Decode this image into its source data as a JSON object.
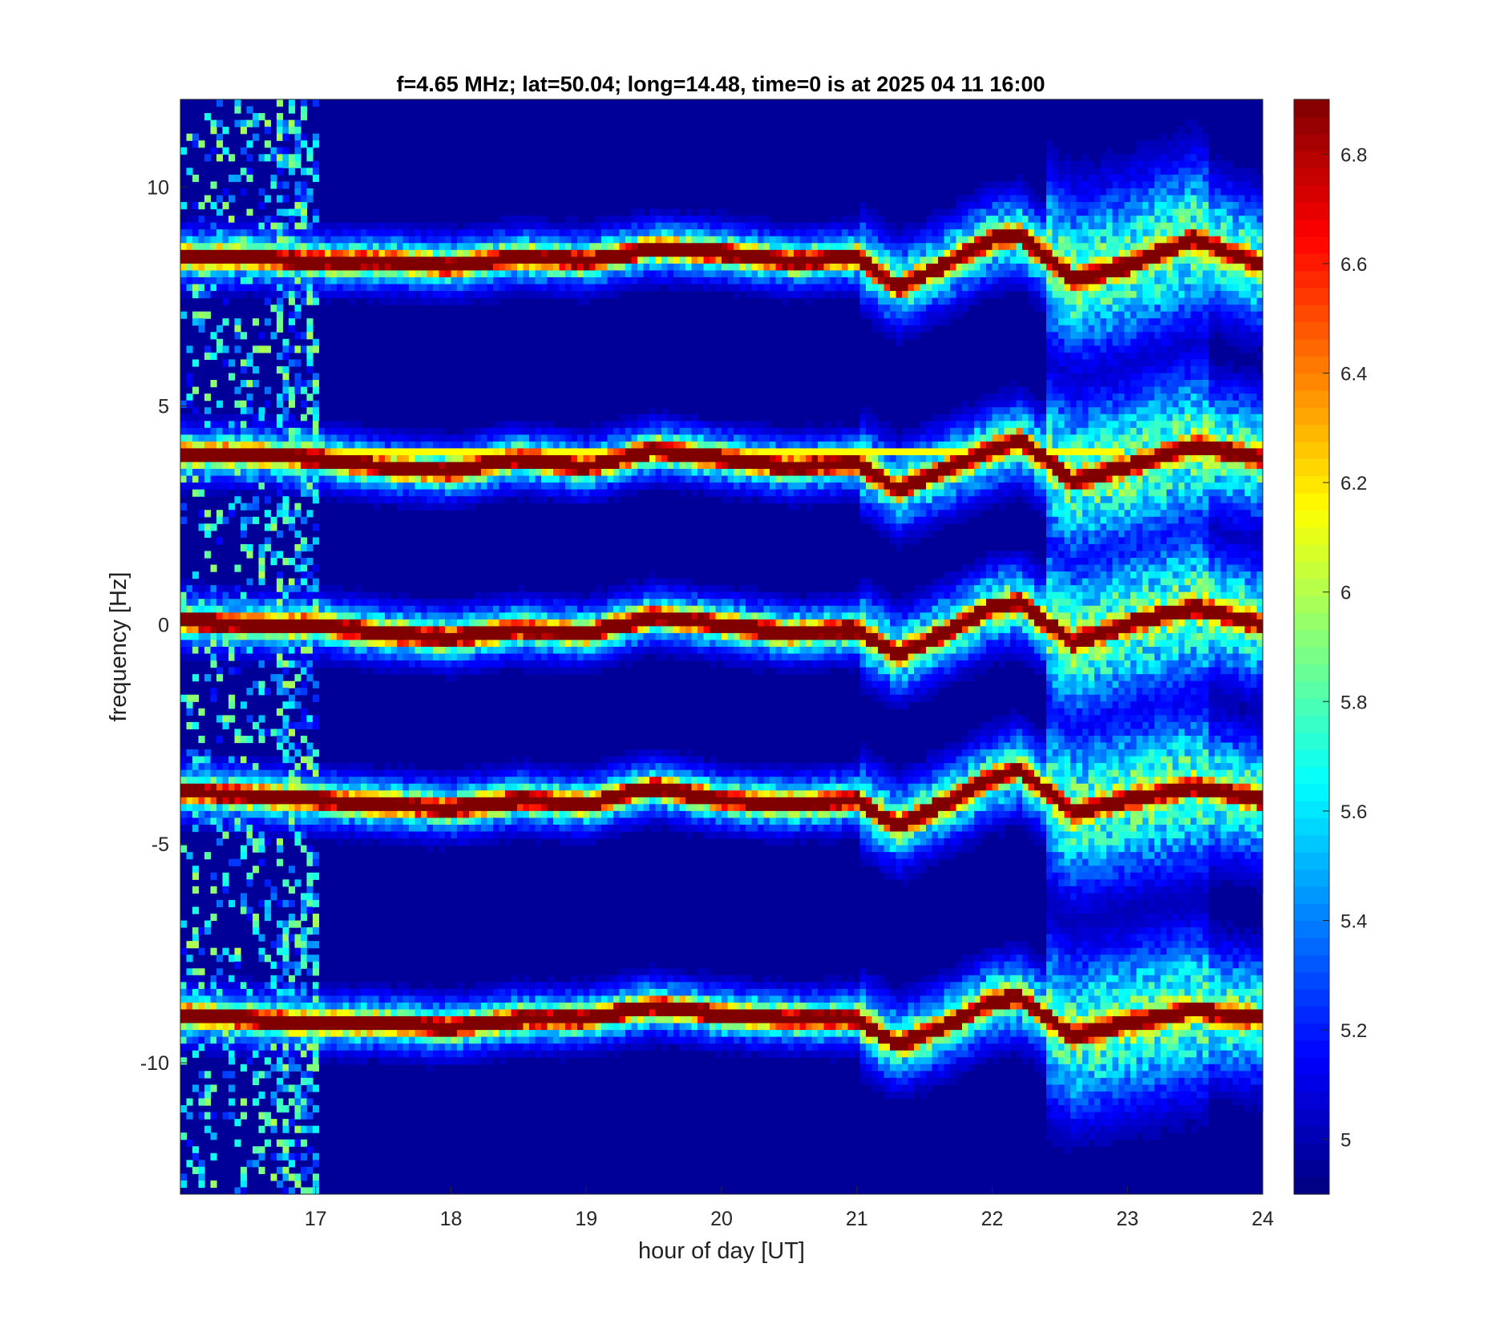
{
  "chart_data": {
    "type": "heatmap",
    "title": "f=4.65 MHz;  lat=50.04; long=14.48, time=0 is at 2025 04 11 16:00",
    "xlabel": "hour of day [UT]",
    "ylabel": "frequency [Hz]",
    "xlim": [
      16,
      24
    ],
    "ylim": [
      -13,
      12
    ],
    "xticks": [
      17,
      18,
      19,
      20,
      21,
      22,
      23,
      24
    ],
    "yticks": [
      -10,
      -5,
      0,
      5,
      10
    ],
    "colormap": "jet",
    "clim": [
      4.9,
      6.9
    ],
    "colorbar_ticks": [
      5,
      5.2,
      5.4,
      5.6,
      5.8,
      6,
      6.2,
      6.4,
      6.6,
      6.8
    ],
    "background_value": 4.95,
    "noise_band_hours": [
      16,
      17
    ],
    "constant_line_frequency": 4,
    "traces": [
      {
        "center_hz": 8.3,
        "x": [
          16.0,
          16.5,
          17.0,
          17.5,
          18.0,
          18.5,
          19.0,
          19.5,
          20.0,
          20.5,
          21.0,
          21.3,
          21.7,
          22.0,
          22.2,
          22.6,
          23.0,
          23.5,
          24.0
        ],
        "y": [
          8.4,
          8.4,
          8.3,
          8.3,
          8.2,
          8.4,
          8.3,
          8.6,
          8.5,
          8.3,
          8.4,
          7.7,
          8.3,
          8.8,
          8.9,
          7.9,
          8.2,
          8.8,
          8.2
        ]
      },
      {
        "center_hz": 3.8,
        "x": [
          16.0,
          16.5,
          17.0,
          17.5,
          18.0,
          18.5,
          19.0,
          19.5,
          20.0,
          20.5,
          21.0,
          21.3,
          21.7,
          22.0,
          22.2,
          22.6,
          23.0,
          23.5,
          24.0
        ],
        "y": [
          3.9,
          3.9,
          3.8,
          3.6,
          3.5,
          3.8,
          3.6,
          4.0,
          3.8,
          3.6,
          3.7,
          3.1,
          3.6,
          4.0,
          4.2,
          3.3,
          3.6,
          4.1,
          3.8
        ]
      },
      {
        "center_hz": 0,
        "x": [
          16.0,
          16.5,
          17.0,
          17.5,
          18.0,
          18.5,
          19.0,
          19.5,
          20.0,
          20.5,
          21.0,
          21.3,
          21.7,
          22.0,
          22.2,
          22.6,
          23.0,
          23.5,
          24.0
        ],
        "y": [
          0.1,
          0.0,
          0.0,
          -0.2,
          -0.3,
          -0.1,
          -0.2,
          0.2,
          0.0,
          -0.2,
          -0.1,
          -0.7,
          -0.1,
          0.4,
          0.5,
          -0.4,
          0.0,
          0.4,
          0.0
        ]
      },
      {
        "center_hz": -4,
        "x": [
          16.0,
          16.5,
          17.0,
          17.5,
          18.0,
          18.5,
          19.0,
          19.5,
          20.0,
          20.5,
          21.0,
          21.3,
          21.7,
          22.0,
          22.2,
          22.6,
          23.0,
          23.5,
          24.0
        ],
        "y": [
          -3.8,
          -3.9,
          -4.0,
          -4.1,
          -4.2,
          -4.0,
          -4.1,
          -3.7,
          -4.0,
          -4.1,
          -4.0,
          -4.6,
          -4.0,
          -3.5,
          -3.3,
          -4.3,
          -4.0,
          -3.7,
          -4.0
        ]
      },
      {
        "center_hz": -9,
        "x": [
          16.0,
          16.5,
          17.0,
          17.5,
          18.0,
          18.5,
          19.0,
          19.5,
          20.0,
          20.5,
          21.0,
          21.3,
          21.7,
          22.0,
          22.2,
          22.6,
          23.0,
          23.5,
          24.0
        ],
        "y": [
          -8.9,
          -9.0,
          -9.1,
          -9.1,
          -9.2,
          -9.0,
          -9.0,
          -8.7,
          -8.9,
          -9.0,
          -9.0,
          -9.6,
          -9.1,
          -8.6,
          -8.5,
          -9.4,
          -9.1,
          -8.8,
          -9.0
        ]
      }
    ]
  }
}
